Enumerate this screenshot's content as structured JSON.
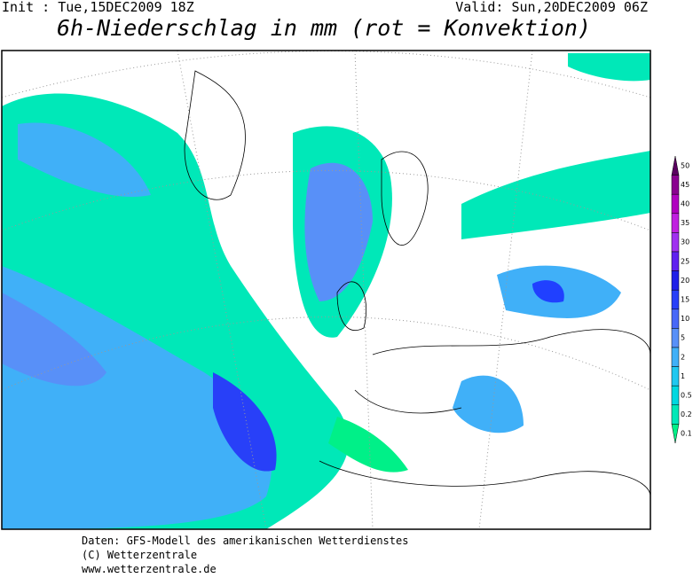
{
  "header": {
    "init": "Init : Tue,15DEC2009 18Z",
    "valid": "Valid: Sun,20DEC2009 06Z",
    "title": "6h-Niederschlag in mm (rot = Konvektion)"
  },
  "legend": {
    "levels": [
      {
        "value": 50,
        "color": "#5a0060"
      },
      {
        "value": 45,
        "color": "#8a0090"
      },
      {
        "value": 40,
        "color": "#b000c0"
      },
      {
        "value": 35,
        "color": "#c020e0"
      },
      {
        "value": 30,
        "color": "#a030f0"
      },
      {
        "value": 25,
        "color": "#6020f0"
      },
      {
        "value": 20,
        "color": "#2020e8"
      },
      {
        "value": 15,
        "color": "#2840f8"
      },
      {
        "value": 10,
        "color": "#4868f8"
      },
      {
        "value": 5,
        "color": "#5890f8"
      },
      {
        "value": 2,
        "color": "#40b0f8"
      },
      {
        "value": 1,
        "color": "#20c8f0"
      },
      {
        "value": 0.5,
        "color": "#00d8e0"
      },
      {
        "value": 0.2,
        "color": "#00e8b8"
      },
      {
        "value": 0.1,
        "color": "#00f088"
      }
    ]
  },
  "footer": {
    "lines": [
      "Daten: GFS-Modell des amerikanischen Wetterdienstes",
      "(C) Wetterzentrale",
      "www.wetterzentrale.de"
    ]
  }
}
